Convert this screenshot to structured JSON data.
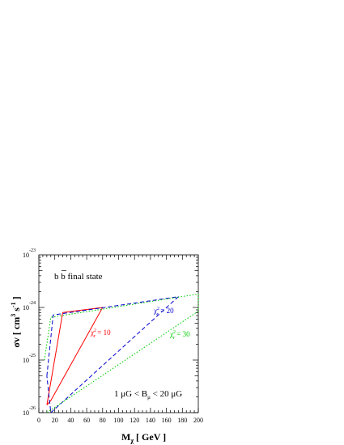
{
  "chart_data": {
    "type": "line",
    "x_axis": {
      "label_main": "M",
      "label_sub": "χ",
      "label_rest": " [ GeV ]",
      "range": [
        0,
        200
      ],
      "ticks": [
        0,
        20,
        40,
        60,
        80,
        100,
        120,
        140,
        160,
        180,
        200
      ]
    },
    "y_axis": {
      "label_main": "σv",
      "label_unit": "[ cm",
      "label_sup1": "3",
      "label_mid": " s",
      "label_sup2": "-1",
      "label_end": " ]",
      "scale": "log",
      "range": [
        1e-26,
        1e-23
      ],
      "ticks": [
        {
          "base": "10",
          "exp": "-26",
          "value": 1e-26
        },
        {
          "base": "10",
          "exp": "-25",
          "value": 1e-25
        },
        {
          "base": "10",
          "exp": "-24",
          "value": 1e-24
        },
        {
          "base": "10",
          "exp": "-23",
          "value": 1e-23
        }
      ]
    },
    "series": [
      {
        "label_prefix": "χ",
        "label_sup": "2",
        "label_sub": "r",
        "label_value": " = 10",
        "color": "#ff0000",
        "dash": "none",
        "points": [
          [
            10,
            1.4e-26
          ],
          [
            30,
            8e-25
          ],
          [
            80,
            1e-24
          ],
          [
            15,
            1.7e-26
          ],
          [
            10,
            1.4e-26
          ]
        ]
      },
      {
        "label_prefix": "χ",
        "label_sup": "2",
        "label_sub": "r",
        "label_value": " = 20",
        "color": "#0000cc",
        "dash": "5,3",
        "points": [
          [
            10,
            5e-26
          ],
          [
            18,
            7.2e-25
          ],
          [
            175,
            1.6e-24
          ],
          [
            15,
            1e-26
          ],
          [
            10,
            5e-26
          ]
        ]
      },
      {
        "label_prefix": "χ",
        "label_sup": "2",
        "label_sub": "r",
        "label_value": " = 30",
        "color": "#00cc00",
        "dash": "1.6,2",
        "points": [
          [
            7,
            1e-25
          ],
          [
            15,
            6.5e-25
          ],
          [
            200,
            1.8e-24
          ],
          [
            200,
            8.5e-25
          ],
          [
            10,
            1e-26
          ]
        ]
      }
    ],
    "annotations": {
      "final_state": "b b final state",
      "bfield_left": "1 μG < B",
      "bfield_sub": "μ",
      "bfield_right": " < 20 μG"
    }
  }
}
